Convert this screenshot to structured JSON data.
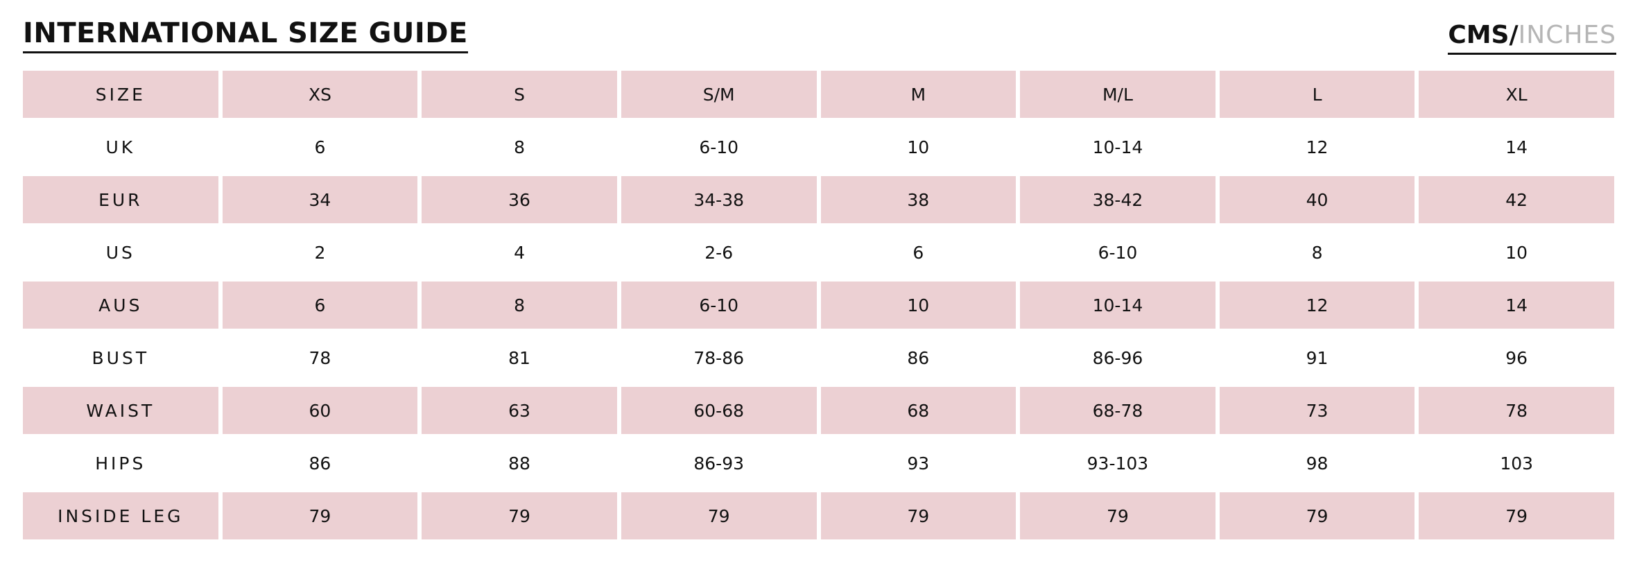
{
  "header": {
    "title": "INTERNATIONAL SIZE GUIDE",
    "unit_toggle": {
      "active": "CMS",
      "separator": "/",
      "inactive": "INCHES"
    }
  },
  "table": {
    "header": [
      "SIZE",
      "XS",
      "S",
      "S/M",
      "M",
      "M/L",
      "L",
      "XL"
    ],
    "rows": [
      [
        "UK",
        "6",
        "8",
        "6-10",
        "10",
        "10-14",
        "12",
        "14"
      ],
      [
        "EUR",
        "34",
        "36",
        "34-38",
        "38",
        "38-42",
        "40",
        "42"
      ],
      [
        "US",
        "2",
        "4",
        "2-6",
        "6",
        "6-10",
        "8",
        "10"
      ],
      [
        "AUS",
        "6",
        "8",
        "6-10",
        "10",
        "10-14",
        "12",
        "14"
      ],
      [
        "BUST",
        "78",
        "81",
        "78-86",
        "86",
        "86-96",
        "91",
        "96"
      ],
      [
        "WAIST",
        "60",
        "63",
        "60-68",
        "68",
        "68-78",
        "73",
        "78"
      ],
      [
        "HIPS",
        "86",
        "88",
        "86-93",
        "93",
        "93-103",
        "98",
        "103"
      ],
      [
        "INSIDE LEG",
        "79",
        "79",
        "79",
        "79",
        "79",
        "79",
        "79"
      ]
    ]
  }
}
